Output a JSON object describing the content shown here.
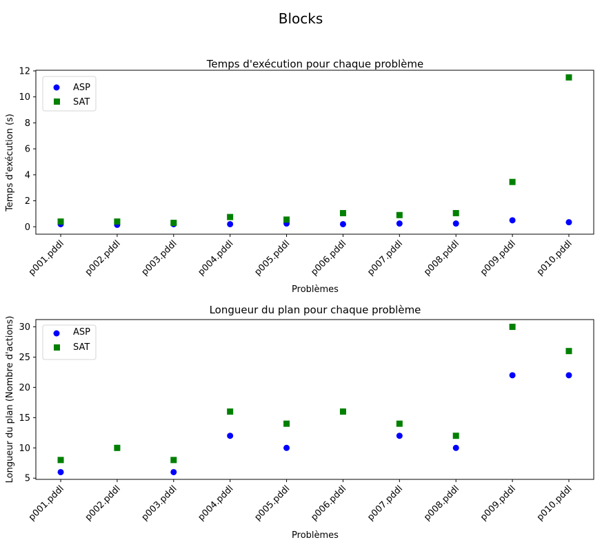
{
  "figure": {
    "suptitle": "Blocks"
  },
  "chart_data": [
    {
      "type": "scatter",
      "title": "Temps d'exécution pour chaque problème",
      "xlabel": "Problèmes",
      "ylabel": "Temps d'exécution (s)",
      "categories": [
        "p001.pddl",
        "p002.pddl",
        "p003.pddl",
        "p004.pddl",
        "p005.pddl",
        "p006.pddl",
        "p007.pddl",
        "p008.pddl",
        "p009.pddl",
        "p010.pddl"
      ],
      "ylim": [
        -0.57,
        12.05
      ],
      "yticks": [
        0,
        2,
        4,
        6,
        8,
        10,
        12
      ],
      "grid": false,
      "legend": "top-left",
      "series": [
        {
          "name": "ASP",
          "marker": "circle",
          "color": "#0000ff",
          "values": [
            0.2,
            0.15,
            0.2,
            0.2,
            0.25,
            0.2,
            0.25,
            0.25,
            0.5,
            0.35
          ]
        },
        {
          "name": "SAT",
          "marker": "square",
          "color": "#008000",
          "values": [
            0.4,
            0.4,
            0.3,
            0.75,
            0.55,
            1.05,
            0.9,
            1.05,
            3.45,
            11.5
          ]
        }
      ]
    },
    {
      "type": "scatter",
      "title": "Longueur du plan pour chaque problème",
      "xlabel": "Problèmes",
      "ylabel": "Longueur du plan (Nombre d'actions)",
      "categories": [
        "p001.pddl",
        "p002.pddl",
        "p003.pddl",
        "p004.pddl",
        "p005.pddl",
        "p006.pddl",
        "p007.pddl",
        "p008.pddl",
        "p009.pddl",
        "p010.pddl"
      ],
      "ylim": [
        4.8,
        31.2
      ],
      "yticks": [
        5,
        10,
        15,
        20,
        25,
        30
      ],
      "grid": false,
      "legend": "top-left",
      "series": [
        {
          "name": "ASP",
          "marker": "circle",
          "color": "#0000ff",
          "values": [
            6,
            10,
            6,
            12,
            10,
            16,
            12,
            10,
            22,
            22
          ]
        },
        {
          "name": "SAT",
          "marker": "square",
          "color": "#008000",
          "values": [
            8,
            10,
            8,
            16,
            14,
            16,
            14,
            12,
            30,
            26
          ]
        }
      ]
    }
  ]
}
